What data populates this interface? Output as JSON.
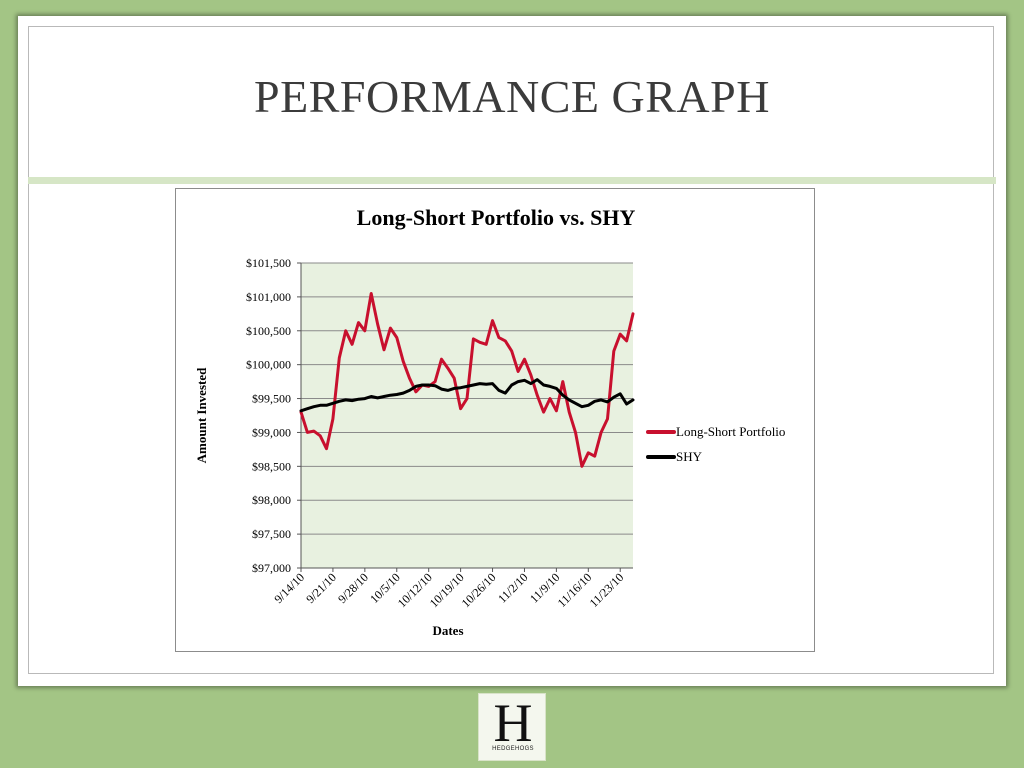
{
  "slide": {
    "title": "PERFORMANCE GRAPH"
  },
  "logo": {
    "letter": "H",
    "text": "HEDGEHOGS"
  },
  "colors": {
    "background": "#a3c585",
    "plot_area": "#e8f1e0",
    "long_short": "#c8102e",
    "shy": "#000000"
  },
  "chart_data": {
    "type": "line",
    "title": "Long-Short Portfolio vs. SHY",
    "xlabel": "Dates",
    "ylabel": "Amount Invested",
    "ylim": [
      97000,
      101500
    ],
    "yticks": [
      "$97,000",
      "$97,500",
      "$98,000",
      "$98,500",
      "$99,000",
      "$99,500",
      "$100,000",
      "$100,500",
      "$101,000",
      "$101,500"
    ],
    "ytick_values": [
      97000,
      97500,
      98000,
      98500,
      99000,
      99500,
      100000,
      100500,
      101000,
      101500
    ],
    "xticks": [
      "9/14/10",
      "9/21/10",
      "9/28/10",
      "10/5/10",
      "10/12/10",
      "10/19/10",
      "10/26/10",
      "11/2/10",
      "11/9/10",
      "11/16/10",
      "11/23/10"
    ],
    "grid": true,
    "legend_position": "right",
    "x": [
      "9/14/10",
      "9/15/10",
      "9/16/10",
      "9/17/10",
      "9/20/10",
      "9/21/10",
      "9/22/10",
      "9/23/10",
      "9/24/10",
      "9/27/10",
      "9/28/10",
      "9/29/10",
      "9/30/10",
      "10/1/10",
      "10/4/10",
      "10/5/10",
      "10/6/10",
      "10/7/10",
      "10/8/10",
      "10/11/10",
      "10/12/10",
      "10/13/10",
      "10/14/10",
      "10/15/10",
      "10/18/10",
      "10/19/10",
      "10/20/10",
      "10/21/10",
      "10/22/10",
      "10/25/10",
      "10/26/10",
      "10/27/10",
      "10/28/10",
      "10/29/10",
      "11/1/10",
      "11/2/10",
      "11/3/10",
      "11/4/10",
      "11/5/10",
      "11/8/10",
      "11/9/10",
      "11/10/10",
      "11/11/10",
      "11/12/10",
      "11/15/10",
      "11/16/10",
      "11/17/10",
      "11/18/10",
      "11/19/10",
      "11/22/10",
      "11/23/10",
      "11/24/10",
      "11/26/10"
    ],
    "series": [
      {
        "name": "Long-Short Portfolio",
        "color": "#c8102e",
        "values": [
          99300,
          99000,
          99020,
          98950,
          98760,
          99200,
          100100,
          100500,
          100300,
          100620,
          100500,
          101050,
          100600,
          100220,
          100540,
          100400,
          100050,
          99800,
          99600,
          99700,
          99680,
          99750,
          100080,
          99950,
          99800,
          99350,
          99500,
          100380,
          100330,
          100300,
          100650,
          100400,
          100350,
          100200,
          99900,
          100080,
          99850,
          99550,
          99300,
          99500,
          99320,
          99750,
          99300,
          99000,
          98500,
          98700,
          98650,
          99000,
          99200,
          100200,
          100450,
          100350,
          100750
        ]
      },
      {
        "name": "SHY",
        "color": "#000000",
        "values": [
          99320,
          99350,
          99380,
          99400,
          99400,
          99430,
          99460,
          99480,
          99470,
          99490,
          99500,
          99530,
          99510,
          99530,
          99550,
          99560,
          99580,
          99620,
          99680,
          99700,
          99700,
          99690,
          99640,
          99620,
          99650,
          99660,
          99680,
          99700,
          99720,
          99710,
          99720,
          99620,
          99580,
          99700,
          99750,
          99770,
          99720,
          99780,
          99700,
          99680,
          99650,
          99550,
          99480,
          99430,
          99380,
          99400,
          99460,
          99480,
          99450,
          99520,
          99570,
          99420,
          99480
        ]
      }
    ]
  }
}
